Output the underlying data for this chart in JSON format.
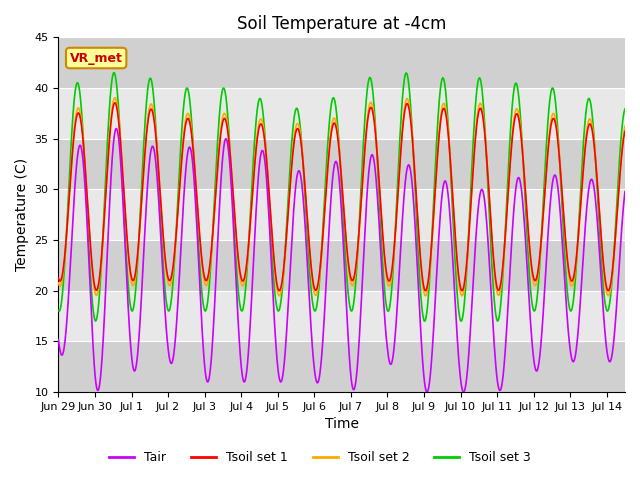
{
  "title": "Soil Temperature at -4cm",
  "xlabel": "Time",
  "ylabel": "Temperature (C)",
  "ylim": [
    10,
    45
  ],
  "xlim_days": [
    0,
    15.5
  ],
  "tick_labels": [
    "Jun 29",
    "Jun 30",
    "Jul 1",
    "Jul 2",
    "Jul 3",
    "Jul 4",
    "Jul 5",
    "Jul 6",
    "Jul 7",
    "Jul 8",
    "Jul 9",
    "Jul 10",
    "Jul 11",
    "Jul 12",
    "Jul 13",
    "Jul 14"
  ],
  "tick_positions": [
    0,
    1,
    2,
    3,
    4,
    5,
    6,
    7,
    8,
    9,
    10,
    11,
    12,
    13,
    14,
    15
  ],
  "yticks": [
    10,
    15,
    20,
    25,
    30,
    35,
    40,
    45
  ],
  "colors": {
    "Tair": "#cc00ff",
    "Tsoil1": "#ff0000",
    "Tsoil2": "#ffaa00",
    "Tsoil3": "#00cc00"
  },
  "legend_labels": [
    "Tair",
    "Tsoil set 1",
    "Tsoil set 2",
    "Tsoil set 3"
  ],
  "background_color": "#ffffff",
  "plot_bg_color": "#d8d8d8",
  "grid_color": "#bbbbbb",
  "stripe_light": "#e8e8e8",
  "stripe_dark": "#d0d0d0",
  "annotation_text": "VR_met",
  "annotation_bg": "#ffff99",
  "annotation_border": "#cc8800",
  "annotation_text_color": "#cc0000",
  "title_fontsize": 12,
  "axis_label_fontsize": 10,
  "tick_fontsize": 8,
  "legend_fontsize": 9,
  "line_width": 1.2
}
